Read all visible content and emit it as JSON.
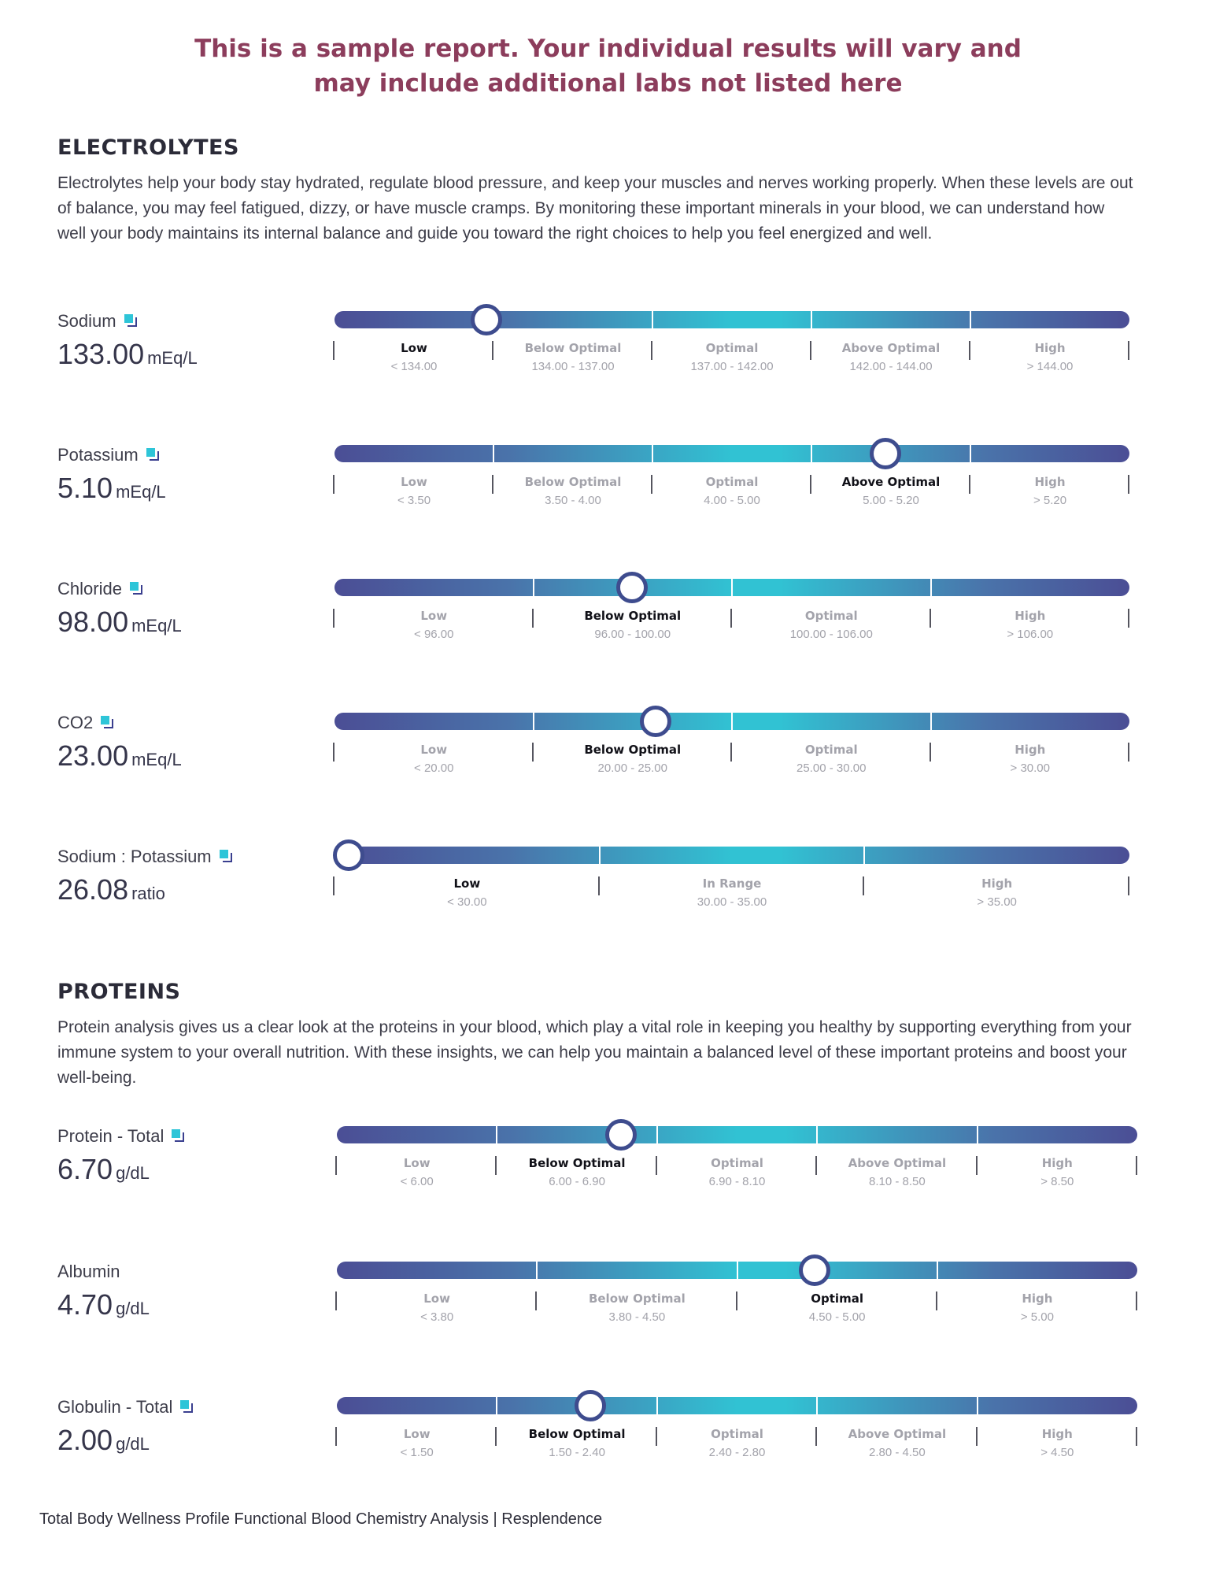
{
  "banner": {
    "line1": "This is a sample report. Your individual results will vary and",
    "line2": "may include additional labs not listed here"
  },
  "sections": [
    {
      "title": "ELECTROLYTES",
      "description": "Electrolytes help your body stay hydrated, regulate blood pressure, and keep your muscles and nerves working properly. When these levels are out of balance, you may feel fatigued, dizzy, or have muscle cramps. By monitoring these important minerals in your blood, we can understand how well your body maintains its internal balance and guide you toward the right choices to help you feel energized and well.",
      "markers": [
        {
          "name": "Sodium",
          "info": true,
          "value": "133.00",
          "unit": "mEq/L",
          "active": 0,
          "position": 0.18,
          "zones": [
            {
              "label": "Low",
              "range": "< 134.00"
            },
            {
              "label": "Below Optimal",
              "range": "134.00 - 137.00"
            },
            {
              "label": "Optimal",
              "range": "137.00 - 142.00"
            },
            {
              "label": "Above Optimal",
              "range": "142.00 - 144.00"
            },
            {
              "label": "High",
              "range": "> 144.00"
            }
          ]
        },
        {
          "name": "Potassium",
          "info": true,
          "value": "5.10",
          "unit": "mEq/L",
          "active": 3,
          "position": 0.7,
          "zones": [
            {
              "label": "Low",
              "range": "< 3.50"
            },
            {
              "label": "Below Optimal",
              "range": "3.50 - 4.00"
            },
            {
              "label": "Optimal",
              "range": "4.00 - 5.00"
            },
            {
              "label": "Above Optimal",
              "range": "5.00 - 5.20"
            },
            {
              "label": "High",
              "range": "> 5.20"
            }
          ]
        },
        {
          "name": "Chloride",
          "info": true,
          "value": "98.00",
          "unit": "mEq/L",
          "active": 1,
          "position": 0.37,
          "zones": [
            {
              "label": "Low",
              "range": "< 96.00"
            },
            {
              "label": "Below Optimal",
              "range": "96.00 - 100.00"
            },
            {
              "label": "Optimal",
              "range": "100.00 - 106.00"
            },
            {
              "label": "High",
              "range": "> 106.00"
            }
          ]
        },
        {
          "name": "CO2",
          "info": true,
          "value": "23.00",
          "unit": "mEq/L",
          "active": 1,
          "position": 0.4,
          "zones": [
            {
              "label": "Low",
              "range": "< 20.00"
            },
            {
              "label": "Below Optimal",
              "range": "20.00 - 25.00"
            },
            {
              "label": "Optimal",
              "range": "25.00 - 30.00"
            },
            {
              "label": "High",
              "range": "> 30.00"
            }
          ]
        },
        {
          "name": "Sodium : Potassium",
          "info": true,
          "value": "26.08",
          "unit": "ratio",
          "active": 0,
          "position": 0.0,
          "zones": [
            {
              "label": "Low",
              "range": "< 30.00"
            },
            {
              "label": "In Range",
              "range": "30.00 - 35.00"
            },
            {
              "label": "High",
              "range": "> 35.00"
            }
          ]
        }
      ]
    },
    {
      "title": "PROTEINS",
      "description": "Protein analysis gives us a clear look at the proteins in your blood, which play a vital role in keeping you healthy by supporting everything from your immune system to your overall nutrition. With these insights, we can help you maintain a balanced level of these important proteins and boost your well-being.",
      "markers": [
        {
          "name": "Protein - Total",
          "info": true,
          "value": "6.70",
          "unit": "g/dL",
          "active": 1,
          "position": 0.35,
          "zones": [
            {
              "label": "Low",
              "range": "< 6.00"
            },
            {
              "label": "Below Optimal",
              "range": "6.00 - 6.90"
            },
            {
              "label": "Optimal",
              "range": "6.90 - 8.10"
            },
            {
              "label": "Above Optimal",
              "range": "8.10 - 8.50"
            },
            {
              "label": "High",
              "range": "> 8.50"
            }
          ]
        },
        {
          "name": "Albumin",
          "info": false,
          "value": "4.70",
          "unit": "g/dL",
          "active": 2,
          "position": 0.6,
          "zones": [
            {
              "label": "Low",
              "range": "< 3.80"
            },
            {
              "label": "Below Optimal",
              "range": "3.80 - 4.50"
            },
            {
              "label": "Optimal",
              "range": "4.50 - 5.00"
            },
            {
              "label": "High",
              "range": "> 5.00"
            }
          ]
        },
        {
          "name": "Globulin - Total",
          "info": true,
          "value": "2.00",
          "unit": "g/dL",
          "active": 1,
          "position": 0.31,
          "zones": [
            {
              "label": "Low",
              "range": "< 1.50"
            },
            {
              "label": "Below Optimal",
              "range": "1.50 - 2.40"
            },
            {
              "label": "Optimal",
              "range": "2.40 - 2.80"
            },
            {
              "label": "Above Optimal",
              "range": "2.80 - 4.50"
            },
            {
              "label": "High",
              "range": "> 4.50"
            }
          ]
        }
      ]
    }
  ],
  "footer": "Total Body Wellness Profile Functional Blood Chemistry Analysis | Resplendence"
}
